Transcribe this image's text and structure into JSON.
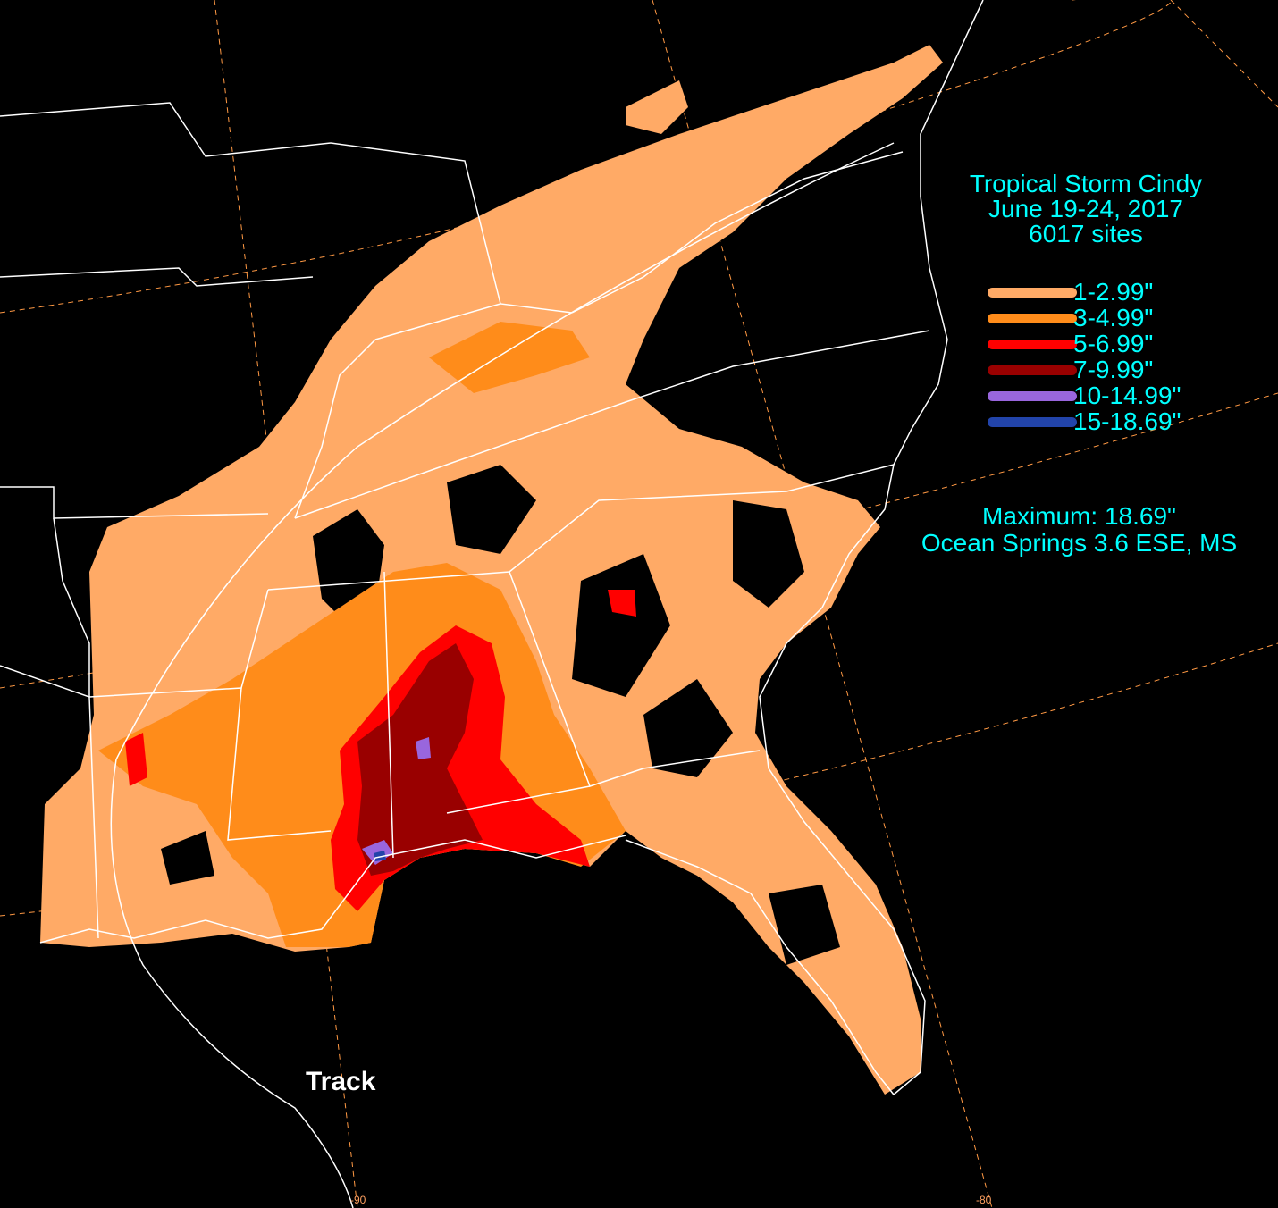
{
  "title": {
    "line1": "Tropical Storm Cindy",
    "line2": "June 19-24, 2017",
    "line3": "6017 sites"
  },
  "legend": [
    {
      "label": "1-2.99\"",
      "color": "#ffaa66"
    },
    {
      "label": "3-4.99\"",
      "color": "#ff8c1a"
    },
    {
      "label": "5-6.99\"",
      "color": "#ff0000"
    },
    {
      "label": "7-9.99\"",
      "color": "#990000"
    },
    {
      "label": "10-14.99\"",
      "color": "#9966dd"
    },
    {
      "label": "15-18.69\"",
      "color": "#2244aa"
    }
  ],
  "maximum": {
    "line1": "Maximum: 18.69\"",
    "line2": "Ocean Springs 3.6 ESE, MS"
  },
  "track_label": "Track",
  "longitude_ticks": [
    "-90",
    "-80"
  ],
  "colors": {
    "background": "#000000",
    "state_borders": "#ffffff",
    "graticule": "#ff9944",
    "text": "#00ffff"
  }
}
